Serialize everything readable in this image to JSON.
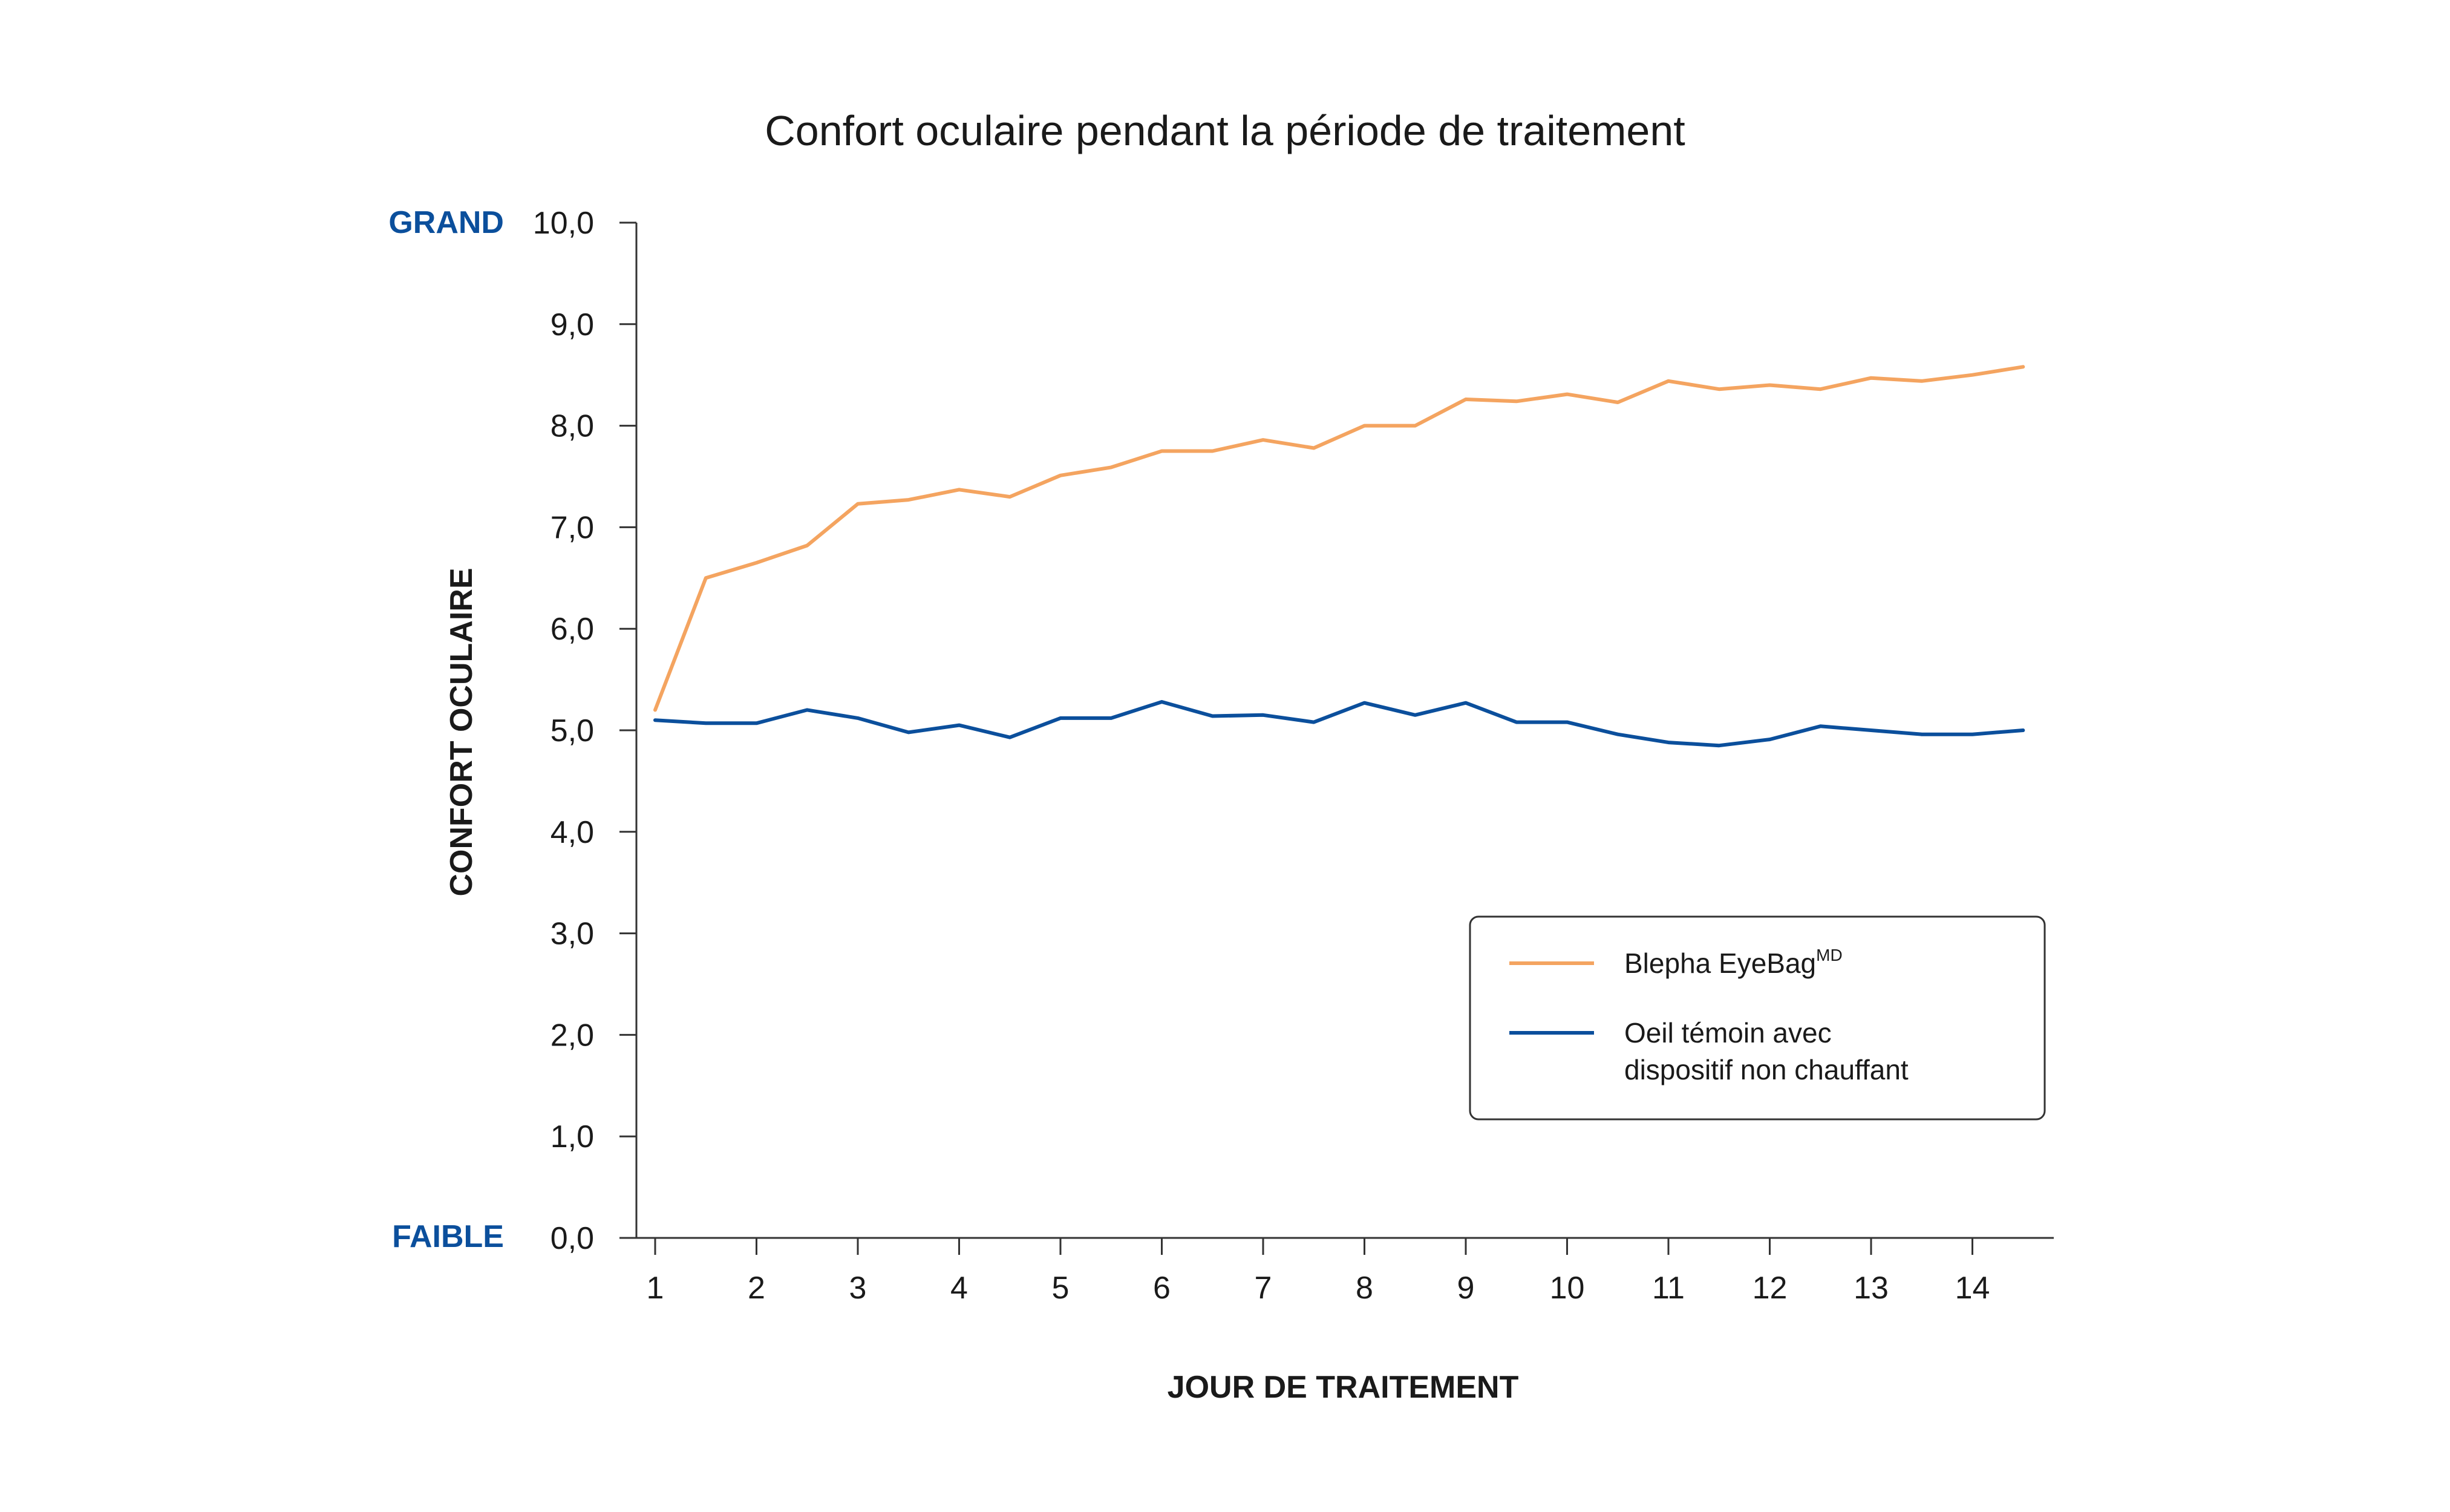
{
  "chart_data": {
    "type": "line",
    "title": "Confort oculaire pendant la période de traitement",
    "xlabel": "JOUR DE TRAITEMENT",
    "ylabel": "CONFORT OCULAIRE",
    "y_high_label": "GRAND",
    "y_low_label": "FAIBLE",
    "ylim": [
      0,
      10
    ],
    "xlim": [
      0.8,
      14.75
    ],
    "x_ticks": [
      1,
      2,
      3,
      4,
      5,
      6,
      7,
      8,
      9,
      10,
      11,
      12,
      13,
      14
    ],
    "y_ticks": [
      "0,0",
      "1,0",
      "2,0",
      "3,0",
      "4,0",
      "5,0",
      "6,0",
      "7,0",
      "8,0",
      "9,0",
      "10,0"
    ],
    "grid": false,
    "legend_position": "bottom-right",
    "x": [
      1,
      1.5,
      2,
      2.5,
      3,
      3.5,
      4,
      4.5,
      5,
      5.5,
      6,
      6.5,
      7,
      7.5,
      8,
      8.5,
      9,
      9.5,
      10,
      10.5,
      11,
      11.5,
      12,
      12.5,
      13,
      13.5,
      14,
      14.5
    ],
    "series": [
      {
        "name": "Blepha EyeBag",
        "name_sup": "MD",
        "color": "#f4a460",
        "values": [
          5.2,
          6.5,
          6.65,
          6.82,
          7.23,
          7.27,
          7.37,
          7.3,
          7.51,
          7.59,
          7.75,
          7.75,
          7.86,
          7.78,
          8.0,
          8.0,
          8.26,
          8.24,
          8.31,
          8.23,
          8.44,
          8.36,
          8.4,
          8.36,
          8.47,
          8.44,
          8.5,
          8.58
        ]
      },
      {
        "name_lines": [
          "Oeil témoin avec",
          "dispositif non chauffant"
        ],
        "color": "#0b4f9c",
        "values": [
          5.1,
          5.07,
          5.07,
          5.2,
          5.12,
          4.98,
          5.05,
          4.93,
          5.12,
          5.12,
          5.28,
          5.14,
          5.15,
          5.08,
          5.27,
          5.15,
          5.27,
          5.08,
          5.08,
          4.96,
          4.88,
          4.85,
          4.91,
          5.04,
          5.0,
          4.96,
          4.96,
          5.0
        ]
      }
    ]
  }
}
